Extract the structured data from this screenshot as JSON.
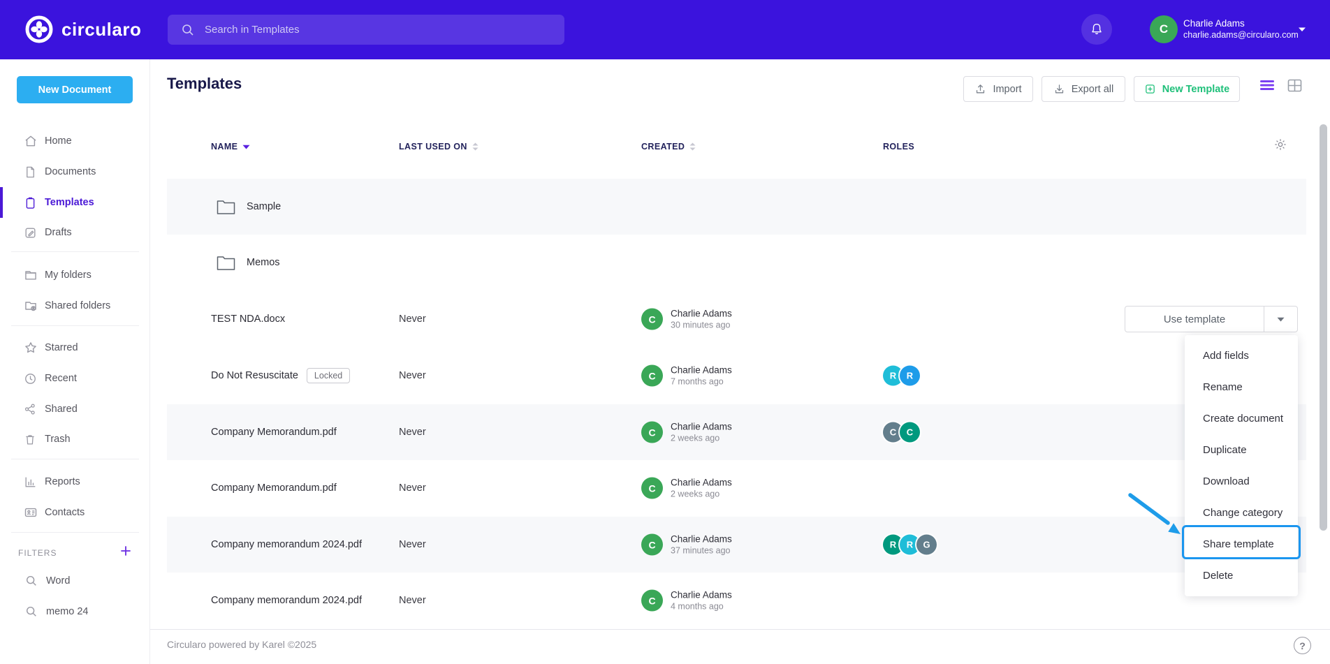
{
  "colors": {
    "topbar_bg": "#3b13dd",
    "new_document_btn": "#2caef1",
    "active_nav": "#4b19d6",
    "avatar_green": "#3aa757",
    "new_template_green": "#1fc07a",
    "highlight_blue": "#1b96ef",
    "arrow_blue": "#1e9ce9",
    "role_cyan": "#1fbdd8",
    "role_blue": "#1e9ce9",
    "role_slate": "#637e8c",
    "role_teal": "#00997e"
  },
  "topbar": {
    "brand": "circularo",
    "search_placeholder": "Search in Templates",
    "user": {
      "initial": "C",
      "name": "Charlie Adams",
      "email": "charlie.adams@circularo.com"
    }
  },
  "sidebar": {
    "new_document": "New Document",
    "items": [
      {
        "label": "Home"
      },
      {
        "label": "Documents"
      },
      {
        "label": "Templates"
      },
      {
        "label": "Drafts"
      },
      {
        "label": "My folders"
      },
      {
        "label": "Shared folders"
      },
      {
        "label": "Starred"
      },
      {
        "label": "Recent"
      },
      {
        "label": "Shared"
      },
      {
        "label": "Trash"
      },
      {
        "label": "Reports"
      },
      {
        "label": "Contacts"
      }
    ],
    "filters": {
      "label": "FILTERS",
      "items": [
        {
          "label": "Word"
        },
        {
          "label": "memo 24"
        }
      ]
    }
  },
  "main": {
    "title": "Templates",
    "actions": {
      "import": "Import",
      "export": "Export all",
      "new_template": "New Template"
    },
    "table": {
      "columns": [
        {
          "label": "NAME"
        },
        {
          "label": "LAST USED ON"
        },
        {
          "label": "CREATED"
        },
        {
          "label": "ROLES"
        }
      ],
      "rows": [
        {
          "type": "folder",
          "name": "Sample"
        },
        {
          "type": "folder",
          "name": "Memos"
        },
        {
          "type": "file",
          "name": "TEST NDA.docx",
          "last_used": "Never",
          "created_by": "Charlie Adams",
          "created_at": "30 minutes ago",
          "avatar": "C",
          "action": "Use template",
          "roles": []
        },
        {
          "type": "file",
          "name": "Do Not Resuscitate",
          "badge": "Locked",
          "last_used": "Never",
          "created_by": "Charlie Adams",
          "created_at": "7 months ago",
          "avatar": "C",
          "roles": [
            {
              "letter": "R",
              "color": "#1fbdd8"
            },
            {
              "letter": "R",
              "color": "#1e9ce9"
            }
          ]
        },
        {
          "type": "file",
          "name": "Company Memorandum.pdf",
          "last_used": "Never",
          "created_by": "Charlie Adams",
          "created_at": "2 weeks ago",
          "avatar": "C",
          "roles": [
            {
              "letter": "C",
              "color": "#637e8c"
            },
            {
              "letter": "C",
              "color": "#00997e"
            }
          ]
        },
        {
          "type": "file",
          "name": "Company Memorandum.pdf",
          "last_used": "Never",
          "created_by": "Charlie Adams",
          "created_at": "2 weeks ago",
          "avatar": "C",
          "roles": []
        },
        {
          "type": "file",
          "name": "Company memorandum 2024.pdf",
          "last_used": "Never",
          "created_by": "Charlie Adams",
          "created_at": "37 minutes ago",
          "avatar": "C",
          "roles": [
            {
              "letter": "R",
              "color": "#00997e"
            },
            {
              "letter": "R",
              "color": "#1fbdd8"
            },
            {
              "letter": "G",
              "color": "#637e8c"
            }
          ]
        },
        {
          "type": "file",
          "name": "Company memorandum 2024.pdf",
          "last_used": "Never",
          "created_by": "Charlie Adams",
          "created_at": "4 months ago",
          "avatar": "C",
          "roles": []
        }
      ]
    },
    "context_menu": {
      "items": [
        {
          "label": "Add fields"
        },
        {
          "label": "Rename"
        },
        {
          "label": "Create document"
        },
        {
          "label": "Duplicate"
        },
        {
          "label": "Download"
        },
        {
          "label": "Change category"
        },
        {
          "label": "Share template"
        },
        {
          "label": "Delete"
        }
      ],
      "highlighted": "Share template"
    },
    "footer": {
      "text": "Circularo powered by Karel ©2025",
      "help": "?"
    }
  }
}
